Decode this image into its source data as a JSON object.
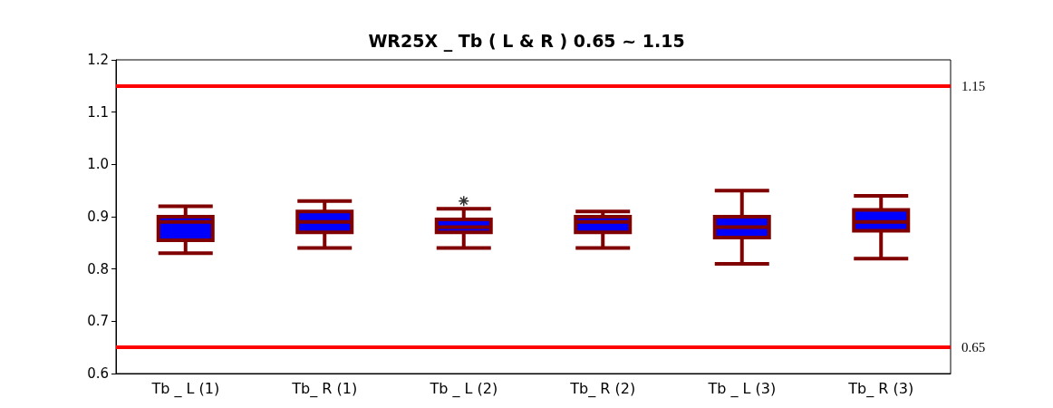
{
  "chart_data": {
    "type": "box",
    "title": "WR25X _ Tb ( L & R ) 0.65 ~ 1.15",
    "categories": [
      "Tb _ L (1)",
      "Tb_ R (1)",
      "Tb _ L (2)",
      "Tb_ R (2)",
      "Tb _ L (3)",
      "Tb_ R (3)"
    ],
    "color": "#0000ff",
    "boxes": [
      {
        "low": 0.83,
        "q1": 0.855,
        "median": 0.89,
        "q3": 0.9,
        "high": 0.92
      },
      {
        "low": 0.84,
        "q1": 0.87,
        "median": 0.89,
        "q3": 0.91,
        "high": 0.93
      },
      {
        "low": 0.84,
        "q1": 0.87,
        "median": 0.88,
        "q3": 0.895,
        "high": 0.915,
        "outliers": [
          0.93
        ]
      },
      {
        "low": 0.84,
        "q1": 0.87,
        "median": 0.89,
        "q3": 0.9,
        "high": 0.91
      },
      {
        "low": 0.81,
        "q1": 0.86,
        "median": 0.88,
        "q3": 0.9,
        "high": 0.95
      },
      {
        "low": 0.82,
        "q1": 0.873,
        "median": 0.89,
        "q3": 0.913,
        "high": 0.94
      }
    ],
    "ylim": [
      0.6,
      1.2
    ],
    "yticks": [
      0.6,
      0.7,
      0.8,
      0.9,
      {
        "value": 1,
        "label": "1.0"
      },
      1.1,
      1.2
    ],
    "ref_lines": [
      {
        "axis": "y",
        "value": 1.15,
        "label": "1.15",
        "color": "#ff0000"
      },
      {
        "axis": "y",
        "value": 0.65,
        "label": "0.65",
        "color": "#ff0000"
      }
    ],
    "marker": "cross"
  }
}
